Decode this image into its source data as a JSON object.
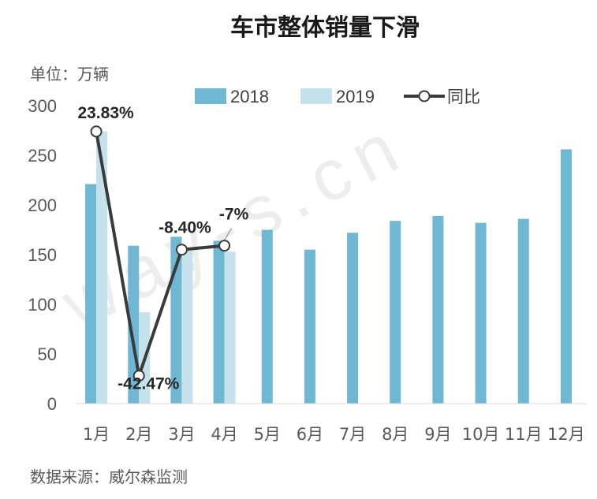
{
  "chart_data": {
    "type": "bar",
    "title": "车市整体销量下滑",
    "unit": "单位：万辆",
    "source": "数据来源：威尔森监测",
    "watermark": "way-s.cn",
    "categories": [
      "1月",
      "2月",
      "3月",
      "4月",
      "5月",
      "6月",
      "7月",
      "8月",
      "9月",
      "10月",
      "11月",
      "12月"
    ],
    "series": [
      {
        "name": "2018",
        "type": "bar",
        "color": "#6fb7d2",
        "values": [
          221,
          159,
          168,
          164,
          175,
          155,
          172,
          184,
          189,
          182,
          186,
          256
        ]
      },
      {
        "name": "2019",
        "type": "bar",
        "color": "#c5e2ec",
        "values": [
          274,
          92,
          154,
          153,
          null,
          null,
          null,
          null,
          null,
          null,
          null,
          null
        ]
      },
      {
        "name": "同比",
        "type": "line",
        "color": "#3a3a3a",
        "values": [
          23.83,
          -42.47,
          -8.4,
          -7,
          null,
          null,
          null,
          null,
          null,
          null,
          null,
          null
        ],
        "labels": [
          "23.83%",
          "-42.47%",
          "-8.40%",
          "-7%"
        ]
      }
    ],
    "ylim": [
      0,
      300
    ],
    "yticks": [
      0,
      50,
      100,
      150,
      200,
      250,
      300
    ],
    "grid": false,
    "legend_position": "top"
  }
}
